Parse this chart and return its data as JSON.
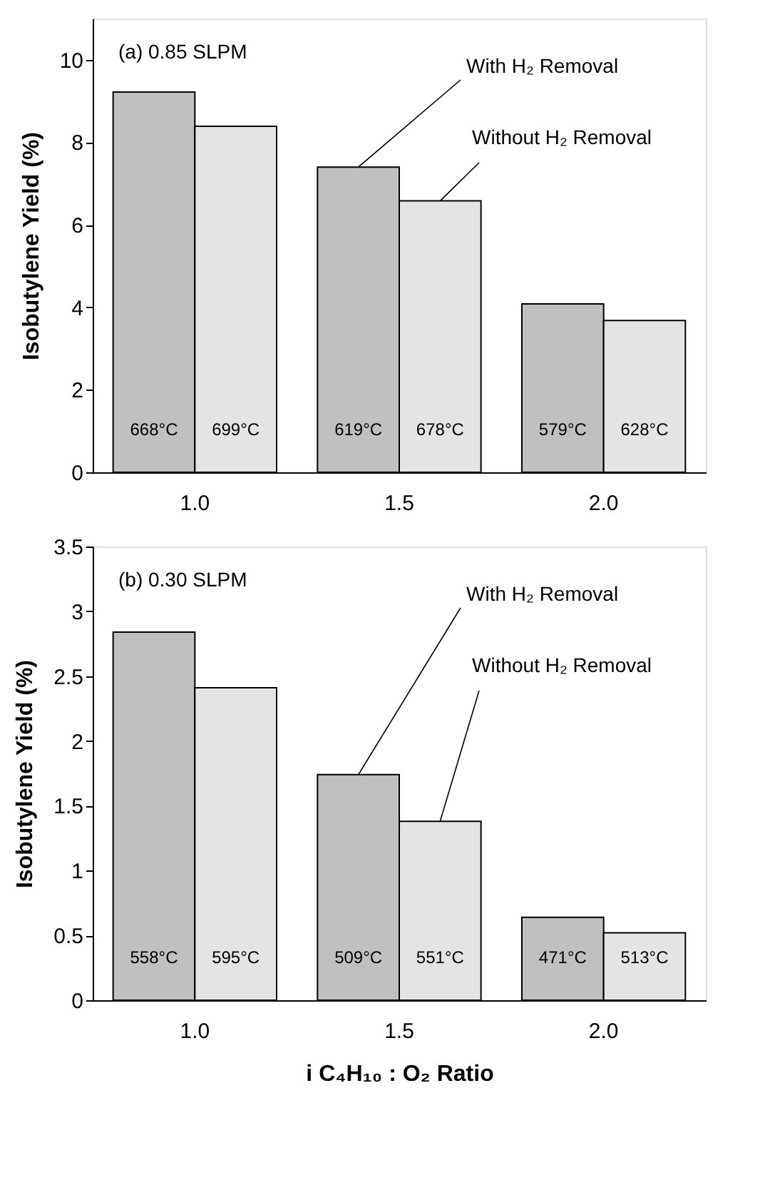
{
  "chart_data": [
    {
      "type": "bar",
      "ylabel": "Isobutylene Yield (%)",
      "categories": [
        "1.0",
        "1.5",
        "2.0"
      ],
      "ylim": [
        0,
        11
      ],
      "yticks": [
        0,
        2,
        4,
        6,
        8,
        10
      ],
      "grid": false,
      "annotations": [
        "(a)  0.85 SLPM",
        "668°C",
        "619°C",
        "579°C",
        "699°C",
        "678°C",
        "628°C"
      ],
      "series": [
        {
          "name": "With H₂ Removal",
          "color": "#c0c0c0",
          "values": [
            9.22,
            7.4,
            4.08
          ]
        },
        {
          "name": "Without H₂ Removal",
          "color": "#e4e4e4",
          "values": [
            8.39,
            6.58,
            3.68
          ]
        }
      ]
    },
    {
      "type": "bar",
      "ylabel": "Isobutylene Yield (%)",
      "xlabel": "i C₄H₁₀ : O₂ Ratio",
      "categories": [
        "1.0",
        "1.5",
        "2.0"
      ],
      "ylim": [
        0,
        3.5
      ],
      "yticks": [
        0,
        0.5,
        1,
        1.5,
        2,
        2.5,
        3,
        3.5
      ],
      "grid": false,
      "annotations": [
        "(b)  0.30 SLPM",
        "558°C",
        "509°C",
        "471°C",
        "595°C",
        "551°C",
        "513°C"
      ],
      "series": [
        {
          "name": "With H₂ Removal",
          "color": "#c0c0c0",
          "values": [
            2.84,
            1.74,
            0.64
          ]
        },
        {
          "name": "Without H₂ Removal",
          "color": "#e4e4e4",
          "values": [
            2.41,
            1.38,
            0.52
          ]
        }
      ]
    }
  ]
}
